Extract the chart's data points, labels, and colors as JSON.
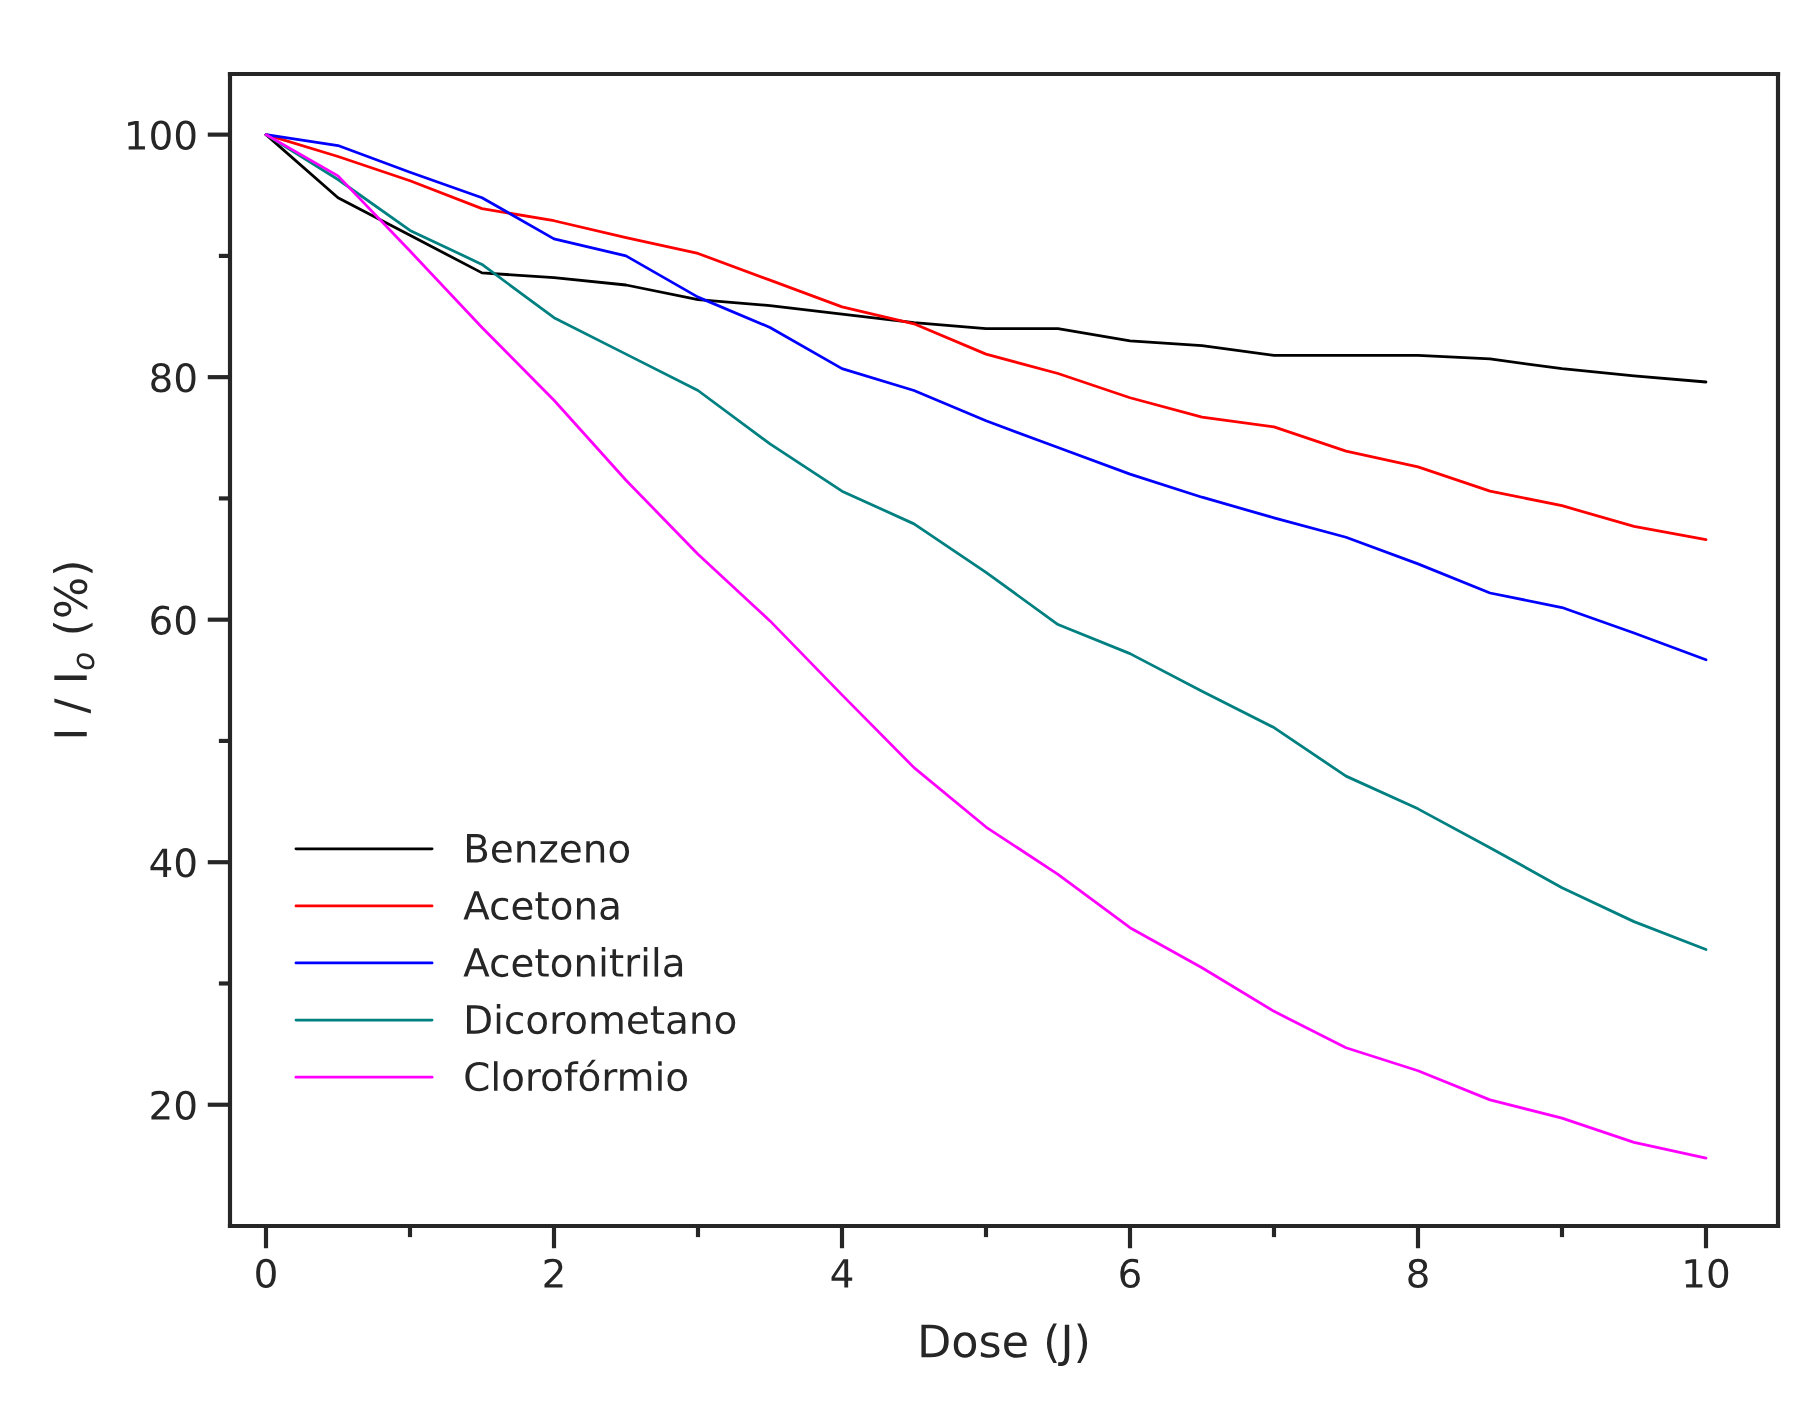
{
  "chart_data": {
    "type": "line",
    "xlabel": "Dose (J)",
    "ylabel": "I / I$_{o}$ (%)",
    "x": [
      0,
      0.5,
      1,
      1.5,
      2,
      2.5,
      3,
      3.5,
      4,
      4.5,
      5,
      5.5,
      6,
      6.5,
      7,
      7.5,
      8,
      8.5,
      9,
      9.5,
      10
    ],
    "series": [
      {
        "name": "Benzeno",
        "color": "#000000",
        "values": [
          100,
          94.8,
          91.7,
          88.6,
          88.2,
          87.6,
          86.4,
          85.9,
          85.2,
          84.5,
          84,
          84,
          83,
          82.6,
          81.8,
          81.8,
          81.8,
          81.5,
          80.7,
          80.1,
          79.6
        ]
      },
      {
        "name": "Acetona",
        "color": "#ff0000",
        "values": [
          100,
          98.2,
          96.2,
          93.9,
          92.9,
          91.5,
          90.2,
          88,
          85.8,
          84.4,
          81.9,
          80.3,
          78.3,
          76.7,
          75.9,
          73.9,
          72.6,
          70.6,
          69.4,
          67.7,
          66.6
        ]
      },
      {
        "name": "Acetonitrila",
        "color": "#0000ff",
        "values": [
          100,
          99.1,
          96.9,
          94.8,
          91.4,
          90,
          86.6,
          84.1,
          80.7,
          78.9,
          76.4,
          74.2,
          72,
          70.1,
          68.4,
          66.8,
          64.6,
          62.2,
          61,
          58.9,
          56.7
        ]
      },
      {
        "name": "Dicorometano",
        "color": "#008080",
        "values": [
          100,
          96.3,
          92.1,
          89.3,
          84.9,
          81.9,
          78.9,
          74.5,
          70.6,
          67.9,
          63.9,
          59.6,
          57.2,
          54.1,
          51.1,
          47.1,
          44.4,
          41.2,
          37.9,
          35.1,
          32.8
        ]
      },
      {
        "name": "Clorofórmio",
        "color": "#ff00ff",
        "values": [
          100,
          96.6,
          90.4,
          84.1,
          78.1,
          71.5,
          65.4,
          59.9,
          53.8,
          47.8,
          42.9,
          39,
          34.6,
          31.3,
          27.7,
          24.7,
          22.8,
          20.4,
          18.9,
          16.9,
          15.6
        ]
      }
    ],
    "xlim": [
      -0.25,
      10.5
    ],
    "xticks": [
      0,
      {
        "value": 1,
        "label": null
      },
      2,
      {
        "value": 3,
        "label": null
      },
      4,
      {
        "value": 5,
        "label": null
      },
      6,
      {
        "value": 7,
        "label": null
      },
      8,
      {
        "value": 9,
        "label": null
      },
      10
    ],
    "ylim": [
      10,
      105
    ],
    "yticks": [
      20,
      {
        "value": 30,
        "label": null
      },
      40,
      {
        "value": 50,
        "label": null
      },
      60,
      {
        "value": 70,
        "label": null
      },
      80,
      {
        "value": 90,
        "label": null
      },
      100
    ],
    "legend": "bottom left",
    "grid": false,
    "marker": "none",
    "line_style": "solid"
  }
}
